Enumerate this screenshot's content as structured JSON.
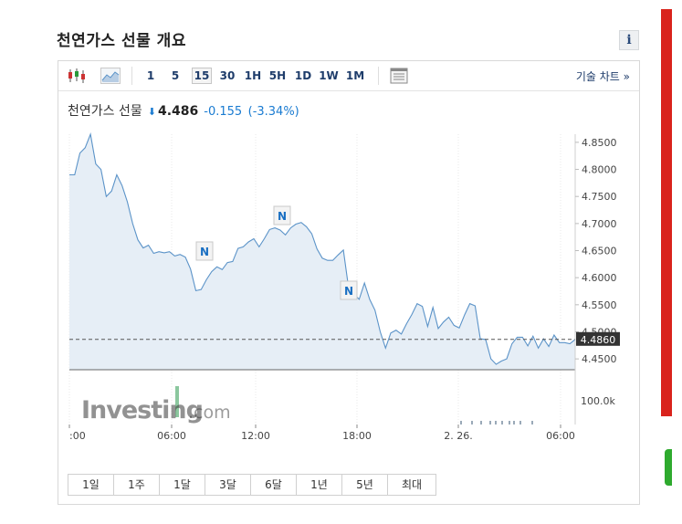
{
  "page": {
    "title": "천연가스 선물 개요",
    "info_label": "i"
  },
  "toolbar": {
    "chart_types": [
      "candlestick-icon",
      "area-chart-icon"
    ],
    "intervals": [
      {
        "label": "1",
        "active": false
      },
      {
        "label": "5",
        "active": false
      },
      {
        "label": "15",
        "active": true
      },
      {
        "label": "30",
        "active": false
      },
      {
        "label": "1H",
        "active": false
      },
      {
        "label": "5H",
        "active": false
      },
      {
        "label": "1D",
        "active": false
      },
      {
        "label": "1W",
        "active": false
      },
      {
        "label": "1M",
        "active": false
      }
    ],
    "table_icon": "table-icon",
    "technical_chart_link": "기술 차트 »"
  },
  "quote": {
    "name": "천연가스 선물",
    "direction": "down",
    "price": "4.486",
    "change": "-0.155",
    "change_pct": "(-3.34%)"
  },
  "chart_data": {
    "type": "area",
    "price_axis_ticks": [
      "4.8500",
      "4.8000",
      "4.7500",
      "4.7000",
      "4.6500",
      "4.6000",
      "4.5500",
      "4.5000",
      "4.4500"
    ],
    "price_range": [
      4.43,
      4.865
    ],
    "current_price_label": "4.4860",
    "current_price": 4.486,
    "time_ticks": [
      ":00",
      "06:00",
      "12:00",
      "18:00",
      "2. 26.",
      "06:00"
    ],
    "volume_label": "100.0k",
    "watermark": "Investing.com",
    "news_markers": [
      "N",
      "N",
      "N"
    ],
    "series": [
      {
        "values": [
          4.79,
          4.79,
          4.83,
          4.84,
          4.865,
          4.81,
          4.8,
          4.75,
          4.76,
          4.79,
          4.77,
          4.74,
          4.7,
          4.67,
          4.655,
          4.66,
          4.645,
          4.648,
          4.646,
          4.648,
          4.64,
          4.643,
          4.638,
          4.616,
          4.576,
          4.578,
          4.596,
          4.611,
          4.62,
          4.615,
          4.628,
          4.63,
          4.654,
          4.657,
          4.666,
          4.672,
          4.657,
          4.672,
          4.689,
          4.692,
          4.688,
          4.679,
          4.692,
          4.699,
          4.702,
          4.694,
          4.681,
          4.653,
          4.636,
          4.632,
          4.632,
          4.642,
          4.651,
          4.58,
          4.57,
          4.56,
          4.59,
          4.56,
          4.54,
          4.5,
          4.47,
          4.498,
          4.503,
          4.496,
          4.515,
          4.532,
          4.552,
          4.547,
          4.51,
          4.545,
          4.506,
          4.518,
          4.527,
          4.512,
          4.507,
          4.531,
          4.552,
          4.548,
          4.487,
          4.486,
          4.45,
          4.44,
          4.446,
          4.45,
          4.478,
          4.49,
          4.49,
          4.474,
          4.492,
          4.47,
          4.487,
          4.473,
          4.494,
          4.48,
          4.48,
          4.478,
          4.486
        ]
      }
    ]
  },
  "range_buttons": [
    "1일",
    "1주",
    "1달",
    "3달",
    "6달",
    "1년",
    "5년",
    "최대"
  ],
  "colors": {
    "line": "#5b93c8",
    "fill": "#e6eef6",
    "down": "#1a7bd1",
    "price_tag_bg": "#333333",
    "side_red": "#d9231c",
    "side_green": "#2eaa2e"
  }
}
